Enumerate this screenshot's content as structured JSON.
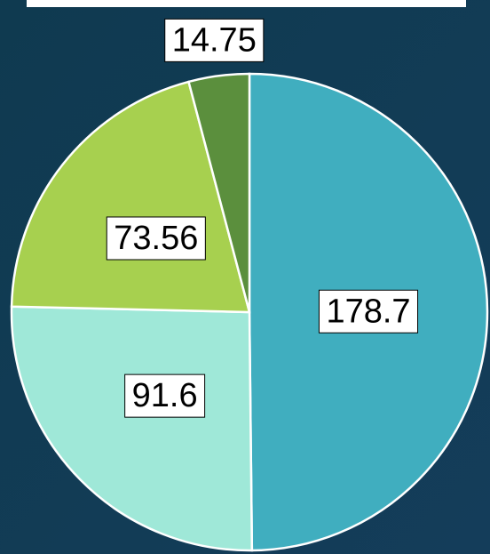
{
  "chart_data": {
    "type": "pie",
    "values": [
      178.7,
      91.6,
      73.56,
      14.75
    ],
    "colors": [
      "#40aebf",
      "#9fe8d8",
      "#a7d04f",
      "#5b8f3d"
    ]
  }
}
